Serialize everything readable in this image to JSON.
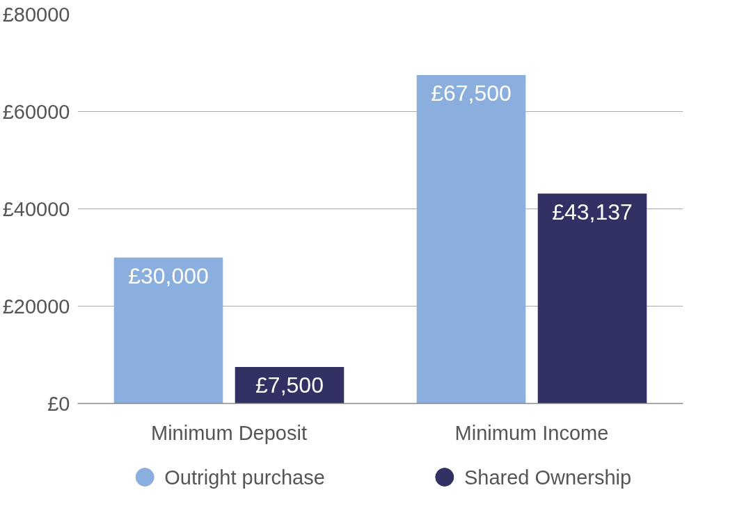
{
  "chart_data": {
    "type": "bar",
    "categories": [
      "Minimum Deposit",
      "Minimum Income"
    ],
    "series": [
      {
        "name": "Outright purchase",
        "color": "#8aaedd",
        "values": [
          30000,
          67500
        ],
        "value_labels": [
          "£30,000",
          "£67,500"
        ]
      },
      {
        "name": "Shared Ownership",
        "color": "#313163",
        "values": [
          7500,
          43137
        ],
        "value_labels": [
          "£7,500",
          "£43,137"
        ]
      }
    ],
    "ylim": [
      0,
      80000
    ],
    "yticks": [
      {
        "value": 0,
        "label": "£0"
      },
      {
        "value": 20000,
        "label": "£20000"
      },
      {
        "value": 40000,
        "label": "£40000"
      },
      {
        "value": 60000,
        "label": "£60000"
      },
      {
        "value": 80000,
        "label": "£80000"
      }
    ],
    "grid": "y",
    "legend": "bottom",
    "marker": "circle"
  }
}
